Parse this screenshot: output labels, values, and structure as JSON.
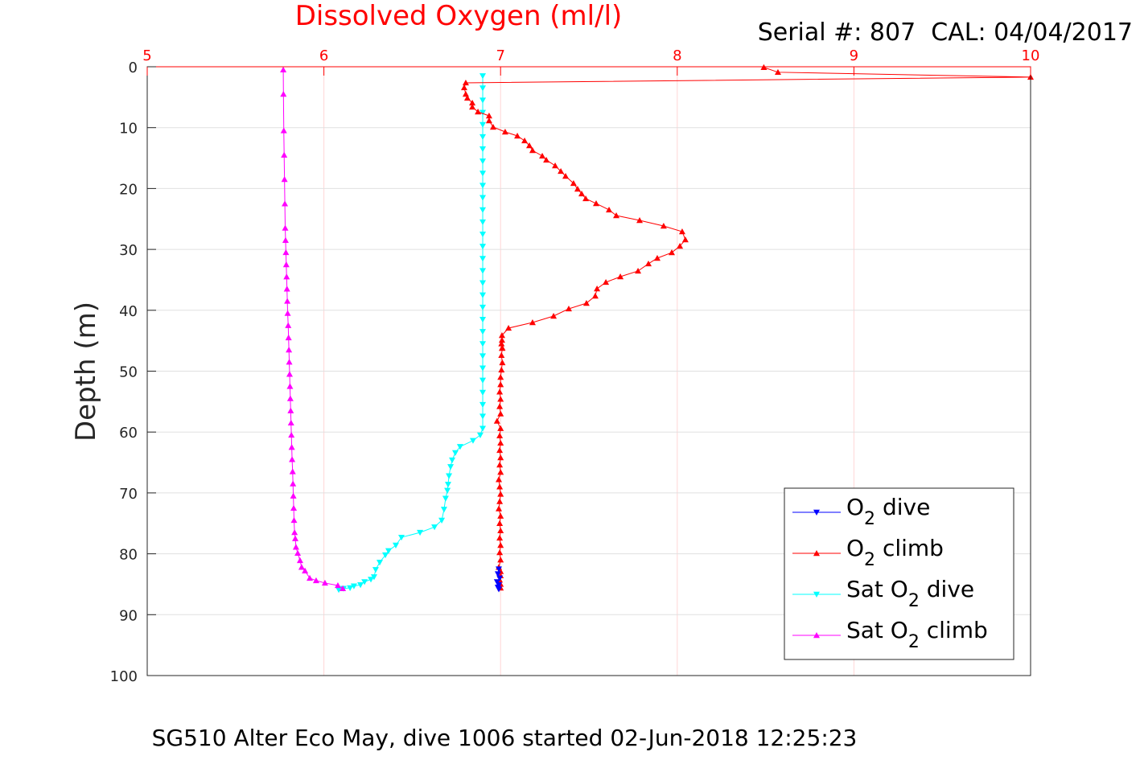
{
  "chart_data": {
    "type": "line",
    "title": "Dissolved Oxygen (ml/l)",
    "subtitle": "Serial #: 807  CAL: 04/04/2017",
    "caption": "SG510 Alter Eco May, dive 1006 started 02-Jun-2018 12:25:23",
    "xlabel": "",
    "ylabel": "Depth (m)",
    "xlim": [
      5,
      10
    ],
    "ylim": [
      0,
      100
    ],
    "y_reversed": true,
    "x_axis_location": "top",
    "xticks": [
      "5",
      "6",
      "7",
      "8",
      "9",
      "10"
    ],
    "yticks": [
      "0",
      "10",
      "20",
      "30",
      "40",
      "50",
      "60",
      "70",
      "80",
      "90",
      "100"
    ],
    "grid": true,
    "legend_position": "bottom-right",
    "colors": {
      "title": "#ff0000",
      "xaxis": "#ff0000",
      "grid": "#e0e0e0",
      "vgrid": "#ffd6d6"
    },
    "series": [
      {
        "name": "O2 dive",
        "label_main": "O",
        "label_sub": "2",
        "label_rest": " dive",
        "color": "#0000ff",
        "marker": "down",
        "x": [
          6.99,
          6.985,
          6.995,
          6.98,
          6.99,
          6.985,
          6.99
        ],
        "y": [
          82.5,
          83.3,
          84.0,
          84.6,
          85.1,
          85.5,
          85.8
        ]
      },
      {
        "name": "O2 climb",
        "label_main": "O",
        "label_sub": "2",
        "label_rest": " climb",
        "color": "#ff0000",
        "marker": "up",
        "x": [
          7.0,
          7.0,
          6.995,
          7.0,
          7.0,
          6.99,
          7.0,
          6.995,
          7.0,
          6.995,
          7.0,
          6.995,
          7.0,
          6.99,
          6.995,
          7.0,
          6.995,
          6.99,
          7.0,
          6.995,
          7.0,
          6.995,
          7.0,
          6.995,
          7.0,
          6.98,
          7.0,
          6.995,
          7.0,
          6.995,
          7.0,
          7.0,
          7.005,
          7.01,
          7.005,
          7.01,
          7.005,
          7.008,
          7.008,
          7.008,
          7.045,
          7.181,
          7.3,
          7.386,
          7.486,
          7.536,
          7.546,
          7.596,
          7.678,
          7.778,
          7.837,
          7.887,
          7.969,
          8.015,
          8.046,
          8.028,
          7.923,
          7.787,
          7.655,
          7.614,
          7.541,
          7.482,
          7.459,
          7.436,
          7.413,
          7.368,
          7.341,
          7.309,
          7.259,
          7.236,
          7.181,
          7.163,
          7.136,
          7.095,
          7.026,
          6.958,
          6.935,
          6.935,
          6.872,
          6.84,
          6.84,
          6.812,
          6.803,
          6.794,
          6.803,
          10.0,
          8.57,
          8.49
        ],
        "y": [
          85.6,
          85.0,
          84.3,
          83.6,
          82.9,
          82.2,
          81.0,
          79.8,
          78.6,
          77.4,
          76.2,
          75.0,
          73.8,
          72.6,
          71.4,
          70.2,
          69.0,
          67.8,
          66.6,
          65.4,
          64.2,
          63.0,
          61.8,
          60.6,
          59.4,
          58.2,
          57.0,
          55.8,
          54.6,
          53.4,
          52.2,
          51.0,
          49.8,
          48.6,
          47.4,
          46.2,
          45.5,
          46.24,
          44.91,
          44.12,
          42.93,
          42.01,
          40.95,
          39.76,
          38.84,
          37.65,
          36.46,
          35.4,
          34.48,
          33.55,
          32.36,
          31.44,
          30.52,
          29.46,
          28.4,
          27.08,
          26.16,
          25.23,
          24.44,
          23.51,
          22.46,
          21.66,
          20.87,
          20.08,
          19.15,
          17.97,
          17.17,
          16.25,
          15.32,
          14.66,
          13.74,
          12.95,
          12.15,
          11.36,
          10.7,
          9.91,
          8.85,
          8.06,
          7.4,
          6.61,
          5.94,
          5.15,
          4.49,
          3.43,
          2.64,
          1.7,
          0.9,
          0.1
        ]
      },
      {
        "name": "Sat O2 dive",
        "label_main": "Sat O",
        "label_sub": "2",
        "label_rest": " dive",
        "color": "#00ffff",
        "marker": "down",
        "x": [
          6.899,
          6.899,
          6.899,
          6.899,
          6.899,
          6.899,
          6.899,
          6.899,
          6.899,
          6.899,
          6.899,
          6.899,
          6.899,
          6.899,
          6.899,
          6.899,
          6.899,
          6.899,
          6.899,
          6.899,
          6.899,
          6.899,
          6.899,
          6.899,
          6.899,
          6.899,
          6.899,
          6.899,
          6.899,
          6.899,
          6.885,
          6.844,
          6.771,
          6.744,
          6.726,
          6.717,
          6.708,
          6.703,
          6.699,
          6.689,
          6.68,
          6.667,
          6.626,
          6.544,
          6.439,
          6.407,
          6.366,
          6.348,
          6.316,
          6.293,
          6.284,
          6.266,
          6.23,
          6.207,
          6.17,
          6.148,
          6.111,
          6.084
        ],
        "y": [
          1.5,
          3.5,
          5.5,
          7.5,
          9.5,
          11.5,
          13.5,
          15.5,
          17.5,
          19.5,
          21.5,
          23.5,
          25.5,
          27.5,
          29.5,
          31.5,
          33.5,
          35.5,
          37.5,
          39.5,
          41.5,
          43.5,
          45.5,
          47.5,
          49.5,
          51.5,
          53.5,
          55.5,
          57.4,
          59.4,
          60.5,
          61.4,
          62.4,
          63.4,
          64.6,
          65.7,
          67.2,
          68.6,
          69.6,
          70.9,
          72.7,
          74.5,
          75.6,
          76.5,
          77.3,
          78.6,
          79.5,
          80.2,
          81.4,
          82.6,
          83.8,
          84.2,
          84.6,
          85.1,
          85.3,
          85.6,
          85.7,
          85.9
        ]
      },
      {
        "name": "Sat O2 climb",
        "label_main": "Sat O",
        "label_sub": "2",
        "label_rest": " climb",
        "color": "#ff00ff",
        "marker": "up",
        "x": [
          6.107,
          6.079,
          6.006,
          5.956,
          5.92,
          5.893,
          5.874,
          5.865,
          5.852,
          5.842,
          5.838,
          5.834,
          5.831,
          5.829,
          5.827,
          5.825,
          5.823,
          5.82,
          5.818,
          5.816,
          5.814,
          5.812,
          5.81,
          5.808,
          5.806,
          5.804,
          5.802,
          5.8,
          5.798,
          5.795,
          5.793,
          5.791,
          5.789,
          5.787,
          5.785,
          5.783,
          5.781,
          5.779,
          5.777,
          5.775,
          5.773,
          5.771,
          5.77
        ],
        "y": [
          85.7,
          85.2,
          84.8,
          84.4,
          84.0,
          82.8,
          82.2,
          81.1,
          79.9,
          78.9,
          77.5,
          76.5,
          74.5,
          72.5,
          70.5,
          68.5,
          66.5,
          64.5,
          62.5,
          60.5,
          58.5,
          56.5,
          54.5,
          52.5,
          50.5,
          48.5,
          46.5,
          44.5,
          42.5,
          40.5,
          38.5,
          36.5,
          34.5,
          32.5,
          30.5,
          28.5,
          26.5,
          22.5,
          18.5,
          14.5,
          10.5,
          4.5,
          0.5
        ]
      }
    ]
  }
}
